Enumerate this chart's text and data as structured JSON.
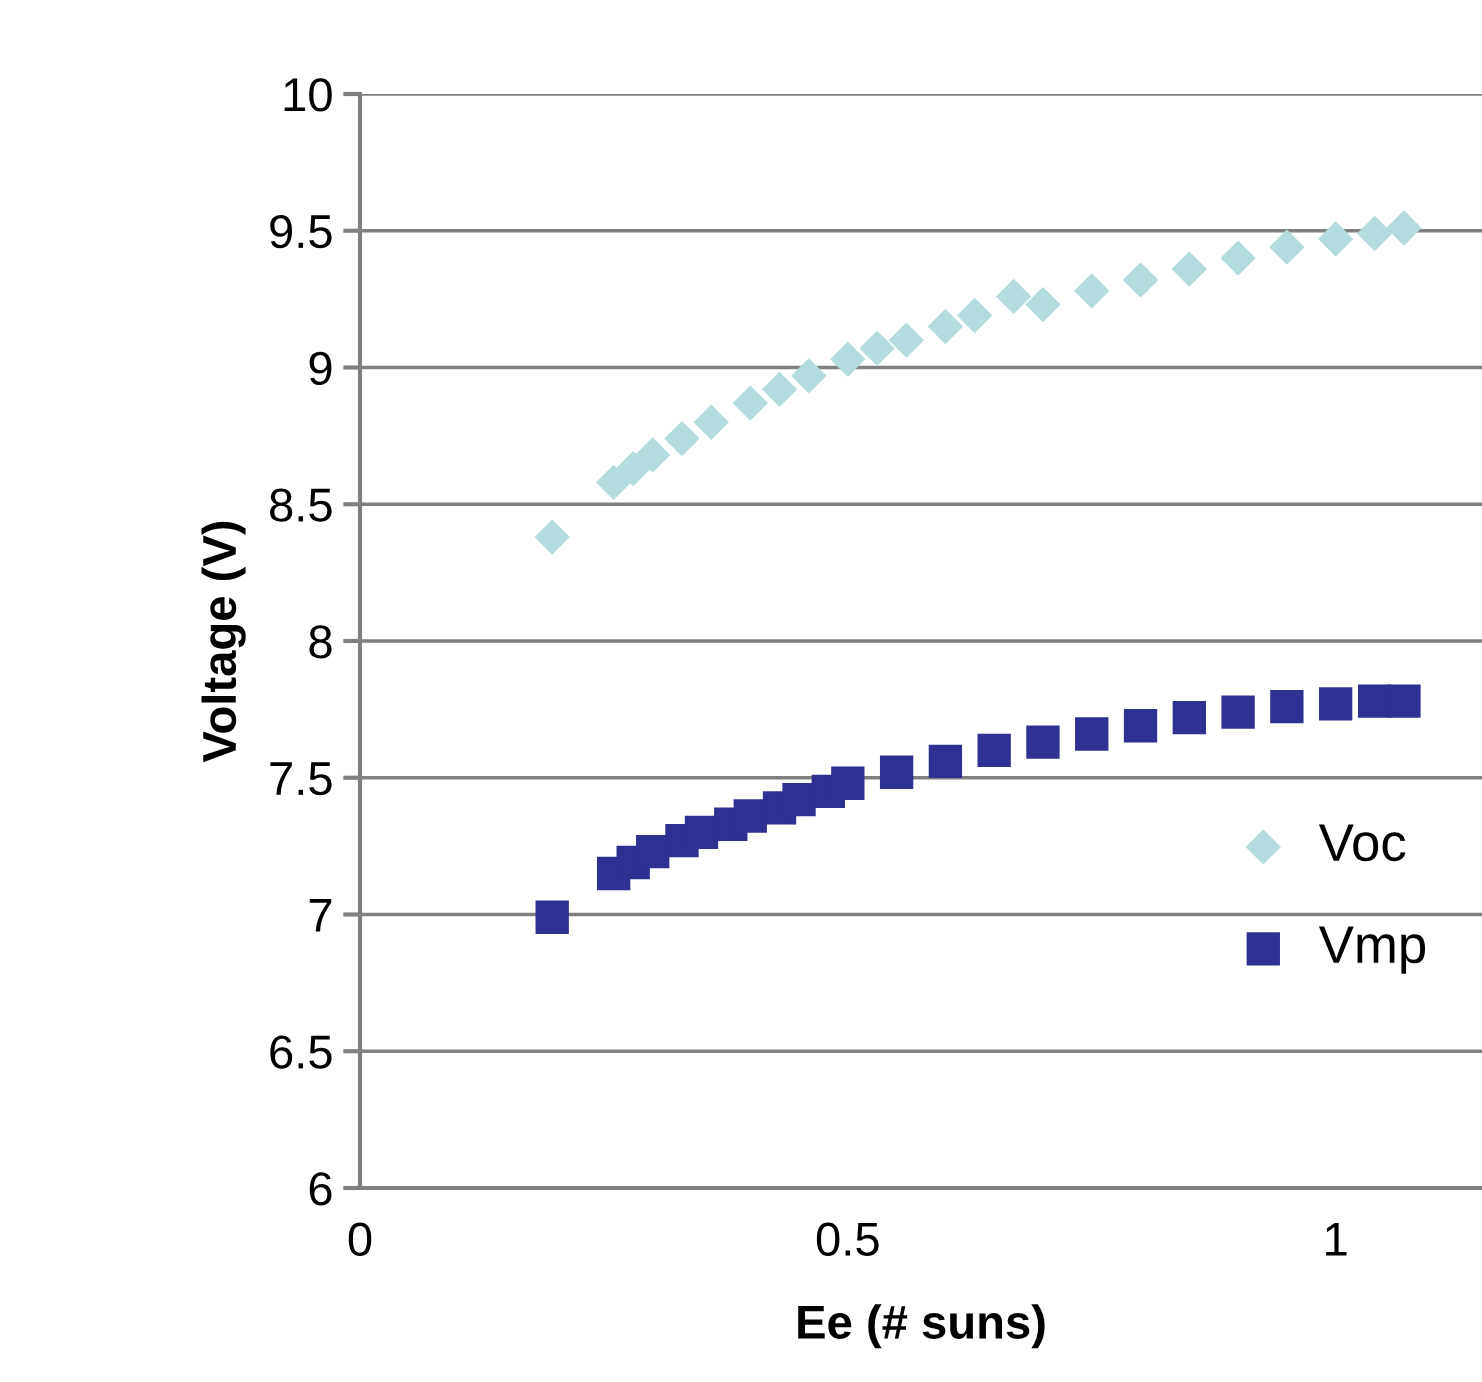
{
  "chart_data": {
    "type": "scatter",
    "xlabel": "Ee (# suns)",
    "ylabel": "Voltage (V)",
    "xlim": [
      0,
      1.15
    ],
    "xticks": [
      0,
      0.5,
      1
    ],
    "ylim": [
      6,
      10
    ],
    "yticks": [
      6,
      6.5,
      7,
      7.5,
      8,
      8.5,
      9,
      9.5,
      10
    ],
    "grid": "y",
    "legend": "right",
    "series": [
      {
        "name": "Voc",
        "color": "#b4dcdf",
        "marker": "diamond",
        "x": [
          0.197,
          0.26,
          0.28,
          0.3,
          0.33,
          0.36,
          0.4,
          0.43,
          0.46,
          0.5,
          0.53,
          0.56,
          0.6,
          0.63,
          0.67,
          0.7,
          0.75,
          0.8,
          0.85,
          0.9,
          0.95,
          1.0,
          1.04,
          1.07
        ],
        "values": [
          8.38,
          8.58,
          8.63,
          8.68,
          8.74,
          8.8,
          8.87,
          8.92,
          8.97,
          9.03,
          9.07,
          9.1,
          9.15,
          9.19,
          9.26,
          9.23,
          9.28,
          9.32,
          9.36,
          9.4,
          9.44,
          9.47,
          9.49,
          9.51
        ]
      },
      {
        "name": "Vmp",
        "color": "#2e3092",
        "marker": "square",
        "x": [
          0.197,
          0.26,
          0.28,
          0.3,
          0.33,
          0.35,
          0.38,
          0.4,
          0.43,
          0.45,
          0.48,
          0.5,
          0.55,
          0.6,
          0.65,
          0.7,
          0.75,
          0.8,
          0.85,
          0.9,
          0.95,
          1.0,
          1.04,
          1.07
        ],
        "values": [
          6.99,
          7.15,
          7.19,
          7.23,
          7.27,
          7.3,
          7.33,
          7.36,
          7.39,
          7.42,
          7.45,
          7.48,
          7.52,
          7.56,
          7.6,
          7.63,
          7.66,
          7.69,
          7.72,
          7.74,
          7.76,
          7.77,
          7.78,
          7.78
        ]
      }
    ]
  }
}
